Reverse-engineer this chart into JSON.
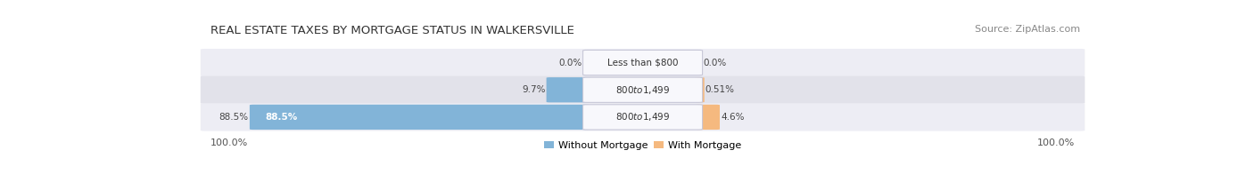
{
  "title": "REAL ESTATE TAXES BY MORTGAGE STATUS IN WALKERSVILLE",
  "source": "Source: ZipAtlas.com",
  "rows": [
    {
      "label": "Less than $800",
      "without_mortgage": 0.0,
      "with_mortgage": 0.0,
      "without_label": "0.0%",
      "with_label": "0.0%",
      "show_inside_label": false
    },
    {
      "label": "$800 to $1,499",
      "without_mortgage": 9.7,
      "with_mortgage": 0.51,
      "without_label": "9.7%",
      "with_label": "0.51%",
      "show_inside_label": false
    },
    {
      "label": "$800 to $1,499",
      "without_mortgage": 88.5,
      "with_mortgage": 4.6,
      "without_label": "88.5%",
      "with_label": "4.6%",
      "show_inside_label": true
    }
  ],
  "left_axis_label": "100.0%",
  "right_axis_label": "100.0%",
  "color_without": "#82b4d8",
  "color_with": "#f5b97f",
  "row_bg_even": "#ededf4",
  "row_bg_odd": "#e2e2ea",
  "legend_without": "Without Mortgage",
  "legend_with": "With Mortgage",
  "center_label_bg": "#f8f8fc",
  "title_fontsize": 9.5,
  "source_fontsize": 8,
  "label_fontsize": 7.5,
  "bar_label_fontsize": 7.5,
  "inside_label_fontsize": 7.5
}
